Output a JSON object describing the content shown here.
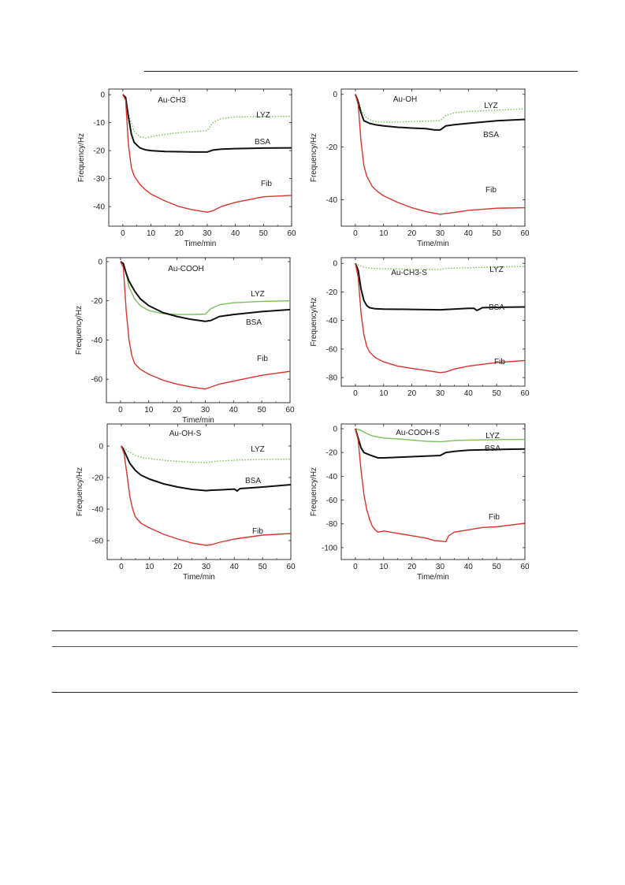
{
  "colors": {
    "axis": "#222222",
    "LYZ": "#7cbf5a",
    "BSA": "#111111",
    "Fib": "#d9342b"
  },
  "chart_data": [
    {
      "type": "line",
      "title": "Au-CH3",
      "xlabel": "Time/min",
      "ylabel": "Frequency/Hz",
      "xlim": [
        -5,
        60
      ],
      "ylim": [
        -47,
        2
      ],
      "xticks": [
        0,
        10,
        20,
        30,
        40,
        50,
        60
      ],
      "yticks": [
        0,
        -10,
        -20,
        -30,
        -40
      ],
      "series": [
        {
          "name": "LYZ",
          "style": "dotted",
          "x": [
            0,
            1,
            2,
            4,
            6,
            8,
            10,
            15,
            20,
            25,
            30,
            32,
            35,
            40,
            50,
            60
          ],
          "y": [
            0,
            -1,
            -7,
            -13,
            -15,
            -15.5,
            -15,
            -14.2,
            -13.6,
            -13.2,
            -12.8,
            -10,
            -8.5,
            -8,
            -7.8,
            -7.7
          ]
        },
        {
          "name": "BSA",
          "style": "solid",
          "x": [
            0,
            1,
            2,
            3,
            4,
            6,
            8,
            10,
            15,
            20,
            25,
            30,
            32,
            35,
            40,
            50,
            60
          ],
          "y": [
            0,
            -1,
            -8,
            -14,
            -17,
            -19,
            -19.7,
            -20,
            -20.3,
            -20.4,
            -20.5,
            -20.5,
            -19.8,
            -19.5,
            -19.3,
            -19.1,
            -19
          ]
        },
        {
          "name": "Fib",
          "style": "solid",
          "x": [
            0,
            1,
            2,
            3,
            4,
            6,
            8,
            10,
            15,
            20,
            25,
            30,
            32,
            35,
            40,
            50,
            60
          ],
          "y": [
            0,
            -2,
            -18,
            -26,
            -29,
            -32,
            -34,
            -35.5,
            -38,
            -40,
            -41.2,
            -42,
            -41.5,
            -40,
            -38.5,
            -36.5,
            -36
          ]
        }
      ]
    },
    {
      "type": "line",
      "title": "Au-OH",
      "xlabel": "Time/min",
      "ylabel": "Frequency/Hz",
      "xlim": [
        -5,
        60
      ],
      "ylim": [
        -50,
        2
      ],
      "xticks": [
        0,
        10,
        20,
        30,
        40,
        50,
        60
      ],
      "yticks": [
        0,
        -20,
        -40
      ],
      "series": [
        {
          "name": "LYZ",
          "style": "dotted",
          "x": [
            0,
            1,
            2,
            4,
            6,
            8,
            10,
            15,
            20,
            25,
            30,
            32,
            35,
            40,
            50,
            60
          ],
          "y": [
            0,
            -2,
            -6,
            -9,
            -10,
            -10.5,
            -10.5,
            -10.5,
            -10.3,
            -10.2,
            -10,
            -8,
            -7,
            -6.5,
            -6,
            -5.5
          ]
        },
        {
          "name": "BSA",
          "style": "solid",
          "x": [
            0,
            1,
            2,
            3,
            5,
            7,
            10,
            15,
            20,
            25,
            28,
            30,
            32,
            35,
            40,
            50,
            60
          ],
          "y": [
            0,
            -3,
            -7,
            -10,
            -11,
            -11.5,
            -12,
            -12.5,
            -12.8,
            -13,
            -13.5,
            -13.5,
            -12,
            -11.5,
            -11,
            -10,
            -9.5
          ]
        },
        {
          "name": "Fib",
          "style": "solid",
          "x": [
            0,
            1,
            2,
            3,
            4,
            6,
            8,
            10,
            15,
            20,
            25,
            30,
            32,
            35,
            40,
            50,
            60
          ],
          "y": [
            0,
            -4,
            -18,
            -27,
            -31,
            -35,
            -37,
            -38.5,
            -41,
            -43,
            -44.5,
            -45.5,
            -45.2,
            -44.8,
            -44,
            -43.2,
            -43
          ]
        }
      ]
    },
    {
      "type": "line",
      "title": "Au-COOH",
      "xlabel": "Time/min",
      "ylabel": "Frequency/Hz",
      "xlim": [
        -5,
        60
      ],
      "ylim": [
        -72,
        2
      ],
      "xticks": [
        0,
        10,
        20,
        30,
        40,
        50,
        60
      ],
      "yticks": [
        0,
        -20,
        -40,
        -60
      ],
      "series": [
        {
          "name": "LYZ",
          "style": "solid",
          "x": [
            0,
            1,
            2,
            3,
            5,
            7,
            10,
            15,
            20,
            25,
            30,
            32,
            35,
            40,
            50,
            60
          ],
          "y": [
            0,
            -1,
            -6,
            -13,
            -19,
            -22.5,
            -25,
            -26.5,
            -27,
            -27,
            -26.8,
            -24,
            -22,
            -21,
            -20.3,
            -20
          ]
        },
        {
          "name": "BSA",
          "style": "solid",
          "x": [
            0,
            1,
            2,
            3,
            5,
            7,
            10,
            15,
            20,
            25,
            30,
            32,
            35,
            40,
            50,
            60
          ],
          "y": [
            0,
            -1,
            -6,
            -10,
            -15,
            -19,
            -22.5,
            -26,
            -28,
            -29.5,
            -30.5,
            -30,
            -28,
            -27,
            -25.5,
            -24.5
          ]
        },
        {
          "name": "Fib",
          "style": "solid",
          "x": [
            0,
            1,
            2,
            3,
            4,
            5,
            7,
            10,
            15,
            20,
            25,
            30,
            32,
            35,
            40,
            50,
            60
          ],
          "y": [
            0,
            -3,
            -25,
            -40,
            -48,
            -52,
            -55,
            -57.5,
            -60.5,
            -62.5,
            -64,
            -65,
            -64,
            -62.5,
            -61,
            -58,
            -56
          ]
        }
      ]
    },
    {
      "type": "line",
      "title": "Au-CH3-S",
      "xlabel": "",
      "ylabel": "Frequency/Hz",
      "xlim": [
        -5,
        60
      ],
      "ylim": [
        -86,
        4
      ],
      "xticks": [
        0,
        10,
        20,
        30,
        40,
        50,
        60
      ],
      "yticks": [
        0,
        -20,
        -40,
        -60,
        -80
      ],
      "series": [
        {
          "name": "LYZ",
          "style": "dotted",
          "x": [
            0,
            1,
            2,
            4,
            6,
            10,
            20,
            30,
            32,
            40,
            50,
            60
          ],
          "y": [
            0,
            -1,
            -2,
            -3,
            -3.5,
            -3.8,
            -4,
            -4.2,
            -3.5,
            -3,
            -2.5,
            -2.2
          ]
        },
        {
          "name": "BSA",
          "style": "solid",
          "x": [
            0,
            1,
            2,
            3,
            4,
            5,
            7,
            10,
            20,
            30,
            40,
            42,
            43,
            45,
            50,
            60
          ],
          "y": [
            0,
            -5,
            -18,
            -26,
            -29.5,
            -31,
            -31.8,
            -32,
            -32.2,
            -32.5,
            -31.5,
            -31.5,
            -33,
            -31,
            -30.8,
            -30.5
          ]
        },
        {
          "name": "Fib",
          "style": "solid",
          "x": [
            0,
            1,
            2,
            3,
            4,
            5,
            7,
            10,
            15,
            20,
            25,
            30,
            32,
            35,
            40,
            50,
            60
          ],
          "y": [
            0,
            -10,
            -35,
            -50,
            -58,
            -62,
            -66,
            -69,
            -72,
            -73.5,
            -75,
            -76.5,
            -76,
            -74,
            -72,
            -69.5,
            -68
          ]
        }
      ]
    },
    {
      "type": "line",
      "title": "Au-OH-S",
      "xlabel": "Time/min",
      "ylabel": "Frequency/Hz",
      "xlim": [
        -5,
        60
      ],
      "ylim": [
        -72,
        14
      ],
      "xticks": [
        0,
        10,
        20,
        30,
        40,
        50,
        60
      ],
      "yticks": [
        0,
        -20,
        -40,
        -60
      ],
      "series": [
        {
          "name": "LYZ",
          "style": "dotted",
          "x": [
            0,
            1,
            3,
            5,
            8,
            10,
            15,
            20,
            25,
            30,
            32,
            35,
            40,
            50,
            60
          ],
          "y": [
            0,
            -1.5,
            -4,
            -6,
            -7.5,
            -8,
            -9,
            -9.8,
            -10.2,
            -10.5,
            -10,
            -9.5,
            -9,
            -8.5,
            -8.3
          ]
        },
        {
          "name": "BSA",
          "style": "solid",
          "x": [
            0,
            1,
            2,
            3,
            5,
            7,
            10,
            15,
            20,
            25,
            30,
            32,
            35,
            40,
            41,
            42,
            50,
            60
          ],
          "y": [
            0,
            -3,
            -7,
            -11,
            -15.5,
            -18.5,
            -21,
            -24,
            -26,
            -27.5,
            -28.3,
            -28,
            -27.8,
            -27.3,
            -28.5,
            -27,
            -26,
            -24.5
          ]
        },
        {
          "name": "Fib",
          "style": "solid",
          "x": [
            0,
            1,
            2,
            3,
            4,
            5,
            7,
            10,
            15,
            20,
            25,
            30,
            32,
            35,
            40,
            50,
            60
          ],
          "y": [
            0,
            -5,
            -18,
            -32,
            -40,
            -45,
            -49,
            -52,
            -56,
            -59,
            -61.5,
            -63,
            -62.5,
            -61,
            -59,
            -56.5,
            -55.5
          ]
        }
      ]
    },
    {
      "type": "line",
      "title": "Au-COOH-S",
      "xlabel": "Time/min",
      "ylabel": "Frequency/Hz",
      "xlim": [
        -5,
        60
      ],
      "ylim": [
        -110,
        4
      ],
      "xticks": [
        0,
        10,
        20,
        30,
        40,
        50,
        60
      ],
      "yticks": [
        0,
        -20,
        -40,
        -60,
        -80,
        -100
      ],
      "series": [
        {
          "name": "LYZ",
          "style": "solid",
          "x": [
            0,
            1,
            2,
            4,
            6,
            8,
            10,
            15,
            20,
            25,
            30,
            32,
            35,
            40,
            50,
            60
          ],
          "y": [
            0,
            -0.5,
            -1.5,
            -4,
            -6,
            -7,
            -7.8,
            -8.5,
            -9.5,
            -10.5,
            -11,
            -10.5,
            -10,
            -9.5,
            -9.2,
            -9
          ]
        },
        {
          "name": "BSA",
          "style": "solid",
          "x": [
            0,
            1,
            2,
            3,
            5,
            8,
            10,
            15,
            20,
            25,
            30,
            32,
            35,
            40,
            50,
            60
          ],
          "y": [
            0,
            -8,
            -16,
            -20,
            -22,
            -24.5,
            -24.5,
            -24,
            -23.5,
            -23,
            -22.5,
            -20,
            -19,
            -18,
            -17.5,
            -17
          ]
        },
        {
          "name": "Fib",
          "style": "solid",
          "x": [
            0,
            1,
            2,
            3,
            4,
            5,
            6,
            7,
            8,
            10,
            15,
            20,
            25,
            28,
            30,
            32,
            33,
            35,
            40,
            45,
            50,
            55,
            60
          ],
          "y": [
            0,
            -10,
            -35,
            -55,
            -68,
            -76,
            -82,
            -85,
            -87,
            -86,
            -88,
            -90,
            -92,
            -94,
            -94.5,
            -95,
            -90,
            -87,
            -85,
            -83,
            -82.5,
            -81,
            -79.5
          ]
        }
      ]
    }
  ]
}
